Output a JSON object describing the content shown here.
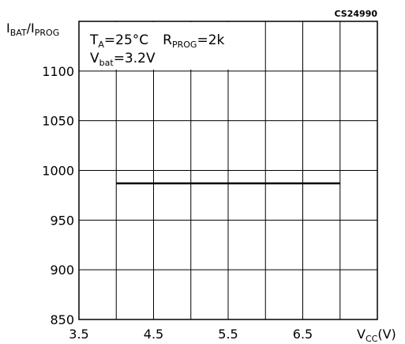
{
  "chart_data": {
    "type": "line",
    "figure_code": "CS24990",
    "ylabel": {
      "main": "I",
      "sub1": "BAT",
      "sep": "/I",
      "sub2": "PROG"
    },
    "xlabel": {
      "main": "V",
      "sub": "CC",
      "unit": "(V)"
    },
    "annotations": {
      "line1": {
        "t": "T",
        "t_sub": "A",
        "t_val": "=25°C",
        "r": "R",
        "r_sub": "PROG",
        "r_val": "=2k"
      },
      "line2": {
        "v": "V",
        "v_sub": "bat",
        "v_val": "=3.2V"
      }
    },
    "x_ticks": [
      "3.5",
      "4.5",
      "5.5",
      "6.5"
    ],
    "y_ticks": [
      "850",
      "900",
      "950",
      "1000",
      "1050",
      "1100"
    ],
    "xlim": [
      3.5,
      7.5
    ],
    "ylim": [
      850,
      1150
    ],
    "grid": true,
    "series": [
      {
        "x": [
          4.0,
          7.0
        ],
        "y": [
          987,
          987
        ],
        "color": "#000000"
      }
    ]
  }
}
